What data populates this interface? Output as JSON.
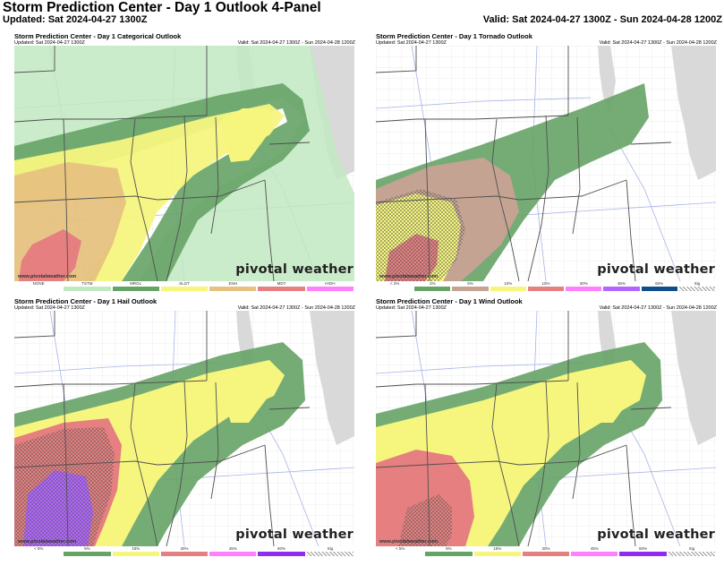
{
  "header": {
    "title": "Storm Prediction Center - Day 1 Outlook 4-Panel",
    "updated": "Updated: Sat 2024-04-27 1300Z",
    "valid": "Valid: Sat 2024-04-27 1300Z - Sun 2024-04-28 1200Z"
  },
  "colors": {
    "land": "#ffffff",
    "water": "#d9d9d9",
    "county_line": "#c8c8c8",
    "state_line": "#505050",
    "highway": "#a8b4e8",
    "tstm": "#c1e9c1",
    "mrgl": "#66a366",
    "slgt": "#f6f67f",
    "enh": "#e6c27f",
    "mdt": "#e67f7f",
    "high": "#ff80ff",
    "tor_brown": "#c5a393",
    "hatch_fill": "#888888"
  },
  "panels": [
    {
      "id": "categorical",
      "title": "Storm Prediction Center - Day 1 Categorical Outlook",
      "updated": "Updated: Sat 2024-04-27 1300Z",
      "valid": "Valid: Sat 2024-04-27 1300Z - Sun 2024-04-28 1200Z",
      "site": "www.pivotalweather.com",
      "watermark": "pivotal weather",
      "legend": [
        {
          "label": "NONE",
          "color": "#ffffff"
        },
        {
          "label": "TSTM",
          "color": "#c1e9c1"
        },
        {
          "label": "MRGL",
          "color": "#66a366"
        },
        {
          "label": "SLGT",
          "color": "#f6f67f"
        },
        {
          "label": "ENH",
          "color": "#e6c27f"
        },
        {
          "label": "MDT",
          "color": "#e67f7f"
        },
        {
          "label": "HIGH",
          "color": "#ff80ff"
        }
      ]
    },
    {
      "id": "tornado",
      "title": "Storm Prediction Center - Day 1 Tornado Outlook",
      "updated": "Updated: Sat 2024-04-27 1300Z",
      "valid": "Valid: Sat 2024-04-27 1300Z - Sun 2024-04-28 1200Z",
      "site": "www.pivotalweather.com",
      "watermark": "pivotal weather",
      "legend": [
        {
          "label": "< 2%",
          "color": "#ffffff"
        },
        {
          "label": "2%",
          "color": "#66a366"
        },
        {
          "label": "5%",
          "color": "#c5a393"
        },
        {
          "label": "10%",
          "color": "#f6f67f"
        },
        {
          "label": "15%",
          "color": "#e67f7f"
        },
        {
          "label": "30%",
          "color": "#ff80ff"
        },
        {
          "label": "45%",
          "color": "#b266ff"
        },
        {
          "label": "60%",
          "color": "#104e8b"
        },
        {
          "label": "Sig",
          "color": "#cccccc"
        }
      ]
    },
    {
      "id": "hail",
      "title": "Storm Prediction Center - Day 1 Hail Outlook",
      "updated": "Updated: Sat 2024-04-27 1300Z",
      "valid": "Valid: Sat 2024-04-27 1300Z - Sun 2024-04-28 1200Z",
      "site": "www.pivotalweather.com",
      "watermark": "pivotal weather",
      "legend": [
        {
          "label": "< 5%",
          "color": "#ffffff"
        },
        {
          "label": "5%",
          "color": "#66a366"
        },
        {
          "label": "15%",
          "color": "#f6f67f"
        },
        {
          "label": "30%",
          "color": "#e67f7f"
        },
        {
          "label": "45%",
          "color": "#ff80ff"
        },
        {
          "label": "60%",
          "color": "#912cee"
        },
        {
          "label": "Sig",
          "color": "#cccccc"
        }
      ]
    },
    {
      "id": "wind",
      "title": "Storm Prediction Center - Day 1 Wind Outlook",
      "updated": "Updated: Sat 2024-04-27 1300Z",
      "valid": "Valid: Sat 2024-04-27 1300Z - Sun 2024-04-28 1200Z",
      "site": "www.pivotalweather.com",
      "watermark": "pivotal weather",
      "legend": [
        {
          "label": "< 5%",
          "color": "#ffffff"
        },
        {
          "label": "5%",
          "color": "#66a366"
        },
        {
          "label": "15%",
          "color": "#f6f67f"
        },
        {
          "label": "30%",
          "color": "#e67f7f"
        },
        {
          "label": "45%",
          "color": "#ff80ff"
        },
        {
          "label": "60%",
          "color": "#912cee"
        },
        {
          "label": "Sig",
          "color": "#cccccc"
        }
      ]
    }
  ]
}
